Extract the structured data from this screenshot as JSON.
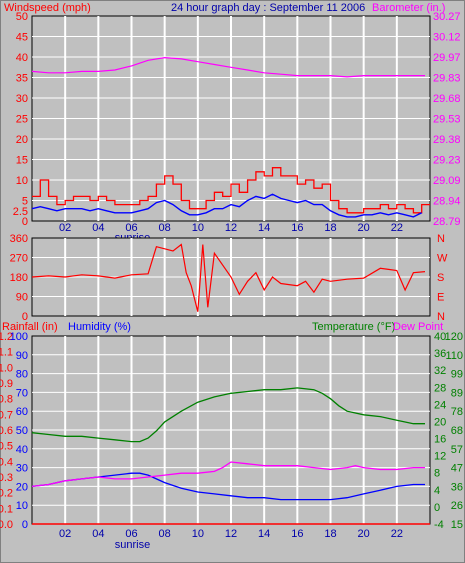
{
  "header": {
    "left_label": "Windspeed (mph)",
    "center_title": "24 hour graph day : September 11 2006",
    "right_label": "Barometer (in.)"
  },
  "bottom_header": {
    "rain_label": "Rainfall (in)",
    "humidity_label": "Humidity (%)",
    "temp_label": "Temperature (°F)",
    "dew_label": "Dew Point"
  },
  "colors": {
    "background": "#c0c0c0",
    "grid": "#ffffff",
    "wind": "#ff0000",
    "gust": "#ff0000",
    "avg_wind": "#0000ff",
    "barometer": "#ff00ff",
    "direction": "#ff0000",
    "humidity": "#0000ff",
    "temperature": "#008000",
    "dew_point": "#ff00ff",
    "rainfall": "#ff0000"
  },
  "x_ticks": [
    "02",
    "04",
    "06",
    "08",
    "10",
    "12",
    "14",
    "16",
    "18",
    "20",
    "22"
  ],
  "sunrise_label": "sunrise",
  "sunrise_hour": 6,
  "chart_data": [
    {
      "type": "line",
      "name": "wind",
      "x_range": [
        0,
        24
      ],
      "ylim": [
        0,
        50
      ],
      "left_ticks": [
        "0",
        "2.5",
        "5",
        "10",
        "15",
        "20",
        "25",
        "30",
        "35",
        "40",
        "45",
        "50"
      ],
      "right_ticks": [
        "28.79",
        "28.94",
        "29.09",
        "29.23",
        "29.38",
        "29.53",
        "29.68",
        "29.83",
        "29.97",
        "30.12",
        "30.27"
      ],
      "barometer_range": [
        28.79,
        30.27
      ],
      "series": [
        {
          "key": "gust",
          "x": [
            0,
            0.5,
            1,
            1.5,
            2,
            2.5,
            3,
            3.5,
            4,
            4.5,
            5,
            5.5,
            6,
            6.5,
            7,
            7.5,
            8,
            8.5,
            9,
            9.5,
            10,
            10.5,
            11,
            11.5,
            12,
            12.5,
            13,
            13.5,
            14,
            14.5,
            15,
            15.5,
            16,
            16.5,
            17,
            17.5,
            18,
            18.5,
            19,
            19.5,
            20,
            20.5,
            21,
            21.5,
            22,
            22.5,
            23,
            23.5
          ],
          "values": [
            6,
            10,
            6,
            4,
            5,
            6,
            6,
            5,
            6,
            5,
            4,
            4,
            4,
            5,
            6,
            9,
            11,
            9,
            5,
            3,
            3,
            5,
            7,
            6,
            9,
            7,
            10,
            12,
            11,
            13,
            11,
            11,
            9,
            10,
            8,
            9,
            5,
            3,
            2,
            2,
            3,
            3,
            4,
            3,
            4,
            3,
            2,
            4
          ]
        },
        {
          "key": "avg_wind",
          "x": [
            0,
            0.5,
            1,
            1.5,
            2,
            2.5,
            3,
            3.5,
            4,
            4.5,
            5,
            5.5,
            6,
            6.5,
            7,
            7.5,
            8,
            8.5,
            9,
            9.5,
            10,
            10.5,
            11,
            11.5,
            12,
            12.5,
            13,
            13.5,
            14,
            14.5,
            15,
            15.5,
            16,
            16.5,
            17,
            17.5,
            18,
            18.5,
            19,
            19.5,
            20,
            20.5,
            21,
            21.5,
            22,
            22.5,
            23,
            23.5
          ],
          "values": [
            3,
            3.5,
            3,
            2.5,
            3,
            3,
            3,
            2.5,
            3,
            2.5,
            2,
            2,
            2,
            2.5,
            3,
            4.5,
            5,
            4,
            2.5,
            1.5,
            1.5,
            2,
            3,
            3,
            4,
            3.5,
            5,
            6,
            5.5,
            6.5,
            5.5,
            5,
            4.5,
            5,
            4,
            4,
            2.5,
            1.5,
            1,
            1,
            1.5,
            1.5,
            2,
            1.5,
            2,
            1.5,
            1,
            2
          ]
        },
        {
          "key": "barometer",
          "x": [
            0,
            1,
            2,
            3,
            4,
            5,
            6,
            7,
            8,
            9,
            10,
            11,
            12,
            13,
            14,
            15,
            16,
            17,
            18,
            19,
            20,
            21,
            22,
            23,
            23.7
          ],
          "values": [
            29.87,
            29.86,
            29.86,
            29.87,
            29.87,
            29.88,
            29.91,
            29.95,
            29.97,
            29.96,
            29.94,
            29.92,
            29.9,
            29.88,
            29.86,
            29.85,
            29.84,
            29.84,
            29.84,
            29.83,
            29.84,
            29.84,
            29.84,
            29.84,
            29.84
          ]
        }
      ]
    },
    {
      "type": "line",
      "name": "wind-direction",
      "x_range": [
        0,
        24
      ],
      "ylim": [
        0,
        360
      ],
      "left_ticks": [
        "0",
        "90",
        "180",
        "270",
        "360"
      ],
      "right_ticks": [
        "N",
        "E",
        "S",
        "W",
        "N"
      ],
      "series": [
        {
          "key": "direction",
          "x": [
            0,
            1,
            2,
            3,
            4,
            5,
            6,
            7,
            7.5,
            8,
            8.5,
            9,
            9.3,
            9.6,
            10,
            10.3,
            10.6,
            11,
            12,
            12.5,
            13,
            13.5,
            14,
            14.5,
            15,
            16,
            16.5,
            17,
            17.5,
            18,
            19,
            20,
            21,
            21.5,
            22,
            22.5,
            23,
            23.7
          ],
          "values": [
            180,
            185,
            180,
            190,
            185,
            175,
            190,
            195,
            320,
            310,
            300,
            330,
            200,
            140,
            20,
            330,
            40,
            290,
            180,
            100,
            160,
            200,
            120,
            180,
            150,
            140,
            160,
            110,
            170,
            160,
            170,
            175,
            220,
            215,
            210,
            120,
            200,
            205
          ]
        }
      ]
    },
    {
      "type": "line",
      "name": "temperature-humidity-rainfall",
      "x_range": [
        0,
        24
      ],
      "left_ticks": [
        "0",
        "10",
        "20",
        "30",
        "40",
        "50",
        "60",
        "70",
        "80",
        "90",
        "100"
      ],
      "rain_ticks": [
        "0.0",
        "0.1",
        "0.2",
        "0.3",
        "0.4",
        "0.5",
        "0.6",
        "0.7",
        "0.8",
        "0.9",
        "1.0"
      ],
      "hum_ticks": [
        "0",
        "10",
        "20",
        "30",
        "40",
        "50",
        "60",
        "70",
        "80",
        "90",
        "100"
      ],
      "rain_ticks_left": [
        "0.0",
        "0.1",
        "0.2",
        "0.3",
        "0.4",
        "0.5",
        "0.6",
        "0.7",
        "0.8",
        "0.9",
        "1.0",
        "1.1",
        "1.2"
      ],
      "hum_ticks_left": [
        "0",
        "10",
        "20",
        "30",
        "40",
        "50",
        "60",
        "70",
        "80",
        "90",
        "100"
      ],
      "celsius_ticks": [
        "-4",
        "0",
        "4",
        "8",
        "12",
        "16",
        "20",
        "24",
        "28",
        "32",
        "36",
        "40"
      ],
      "fahrenheit_ticks": [
        "15",
        "26",
        "36",
        "47",
        "57",
        "68",
        "78",
        "89",
        "99",
        "110",
        "120"
      ],
      "humidity_range": [
        0,
        100
      ],
      "temp_range_f": [
        15,
        120
      ],
      "series": [
        {
          "key": "temperature",
          "x": [
            0,
            1,
            2,
            3,
            4,
            5,
            6,
            6.5,
            7,
            7.5,
            8,
            9,
            10,
            11,
            12,
            13,
            14,
            15,
            16,
            17,
            17.5,
            18,
            18.5,
            19,
            20,
            21,
            22,
            23,
            23.7
          ],
          "values": [
            66,
            65,
            64,
            64,
            63,
            62,
            61,
            61,
            63,
            67,
            72,
            78,
            83,
            86,
            88,
            89,
            90,
            90,
            91,
            90,
            88,
            85,
            81,
            78,
            76,
            75,
            73,
            71,
            71
          ]
        },
        {
          "key": "humidity",
          "x": [
            0,
            1,
            2,
            3,
            4,
            5,
            6,
            6.5,
            7,
            7.5,
            8,
            9,
            10,
            11,
            12,
            13,
            14,
            15,
            16,
            17,
            18,
            19,
            20,
            21,
            22,
            23,
            23.7
          ],
          "values": [
            20,
            21,
            23,
            24,
            25,
            26,
            27,
            27,
            26,
            24,
            22,
            19,
            17,
            16,
            15,
            14,
            14,
            13,
            13,
            13,
            13,
            14,
            16,
            18,
            20,
            21,
            21
          ]
        },
        {
          "key": "dew_point",
          "x": [
            0,
            1,
            2,
            3,
            4,
            5,
            6,
            7,
            8,
            9,
            10,
            11,
            11.5,
            12,
            13,
            14,
            15,
            16,
            17,
            18,
            19,
            19.5,
            20,
            21,
            22,
            23,
            23.7
          ],
          "values": [
            20,
            21,
            23,
            24,
            25,
            24,
            24,
            25,
            26,
            27,
            27,
            28,
            30,
            33,
            32,
            31,
            31,
            31,
            30,
            29,
            30,
            31,
            30,
            29,
            29,
            30,
            30
          ]
        },
        {
          "key": "rainfall",
          "x": [
            0,
            24
          ],
          "values": [
            0,
            0
          ]
        }
      ]
    }
  ]
}
